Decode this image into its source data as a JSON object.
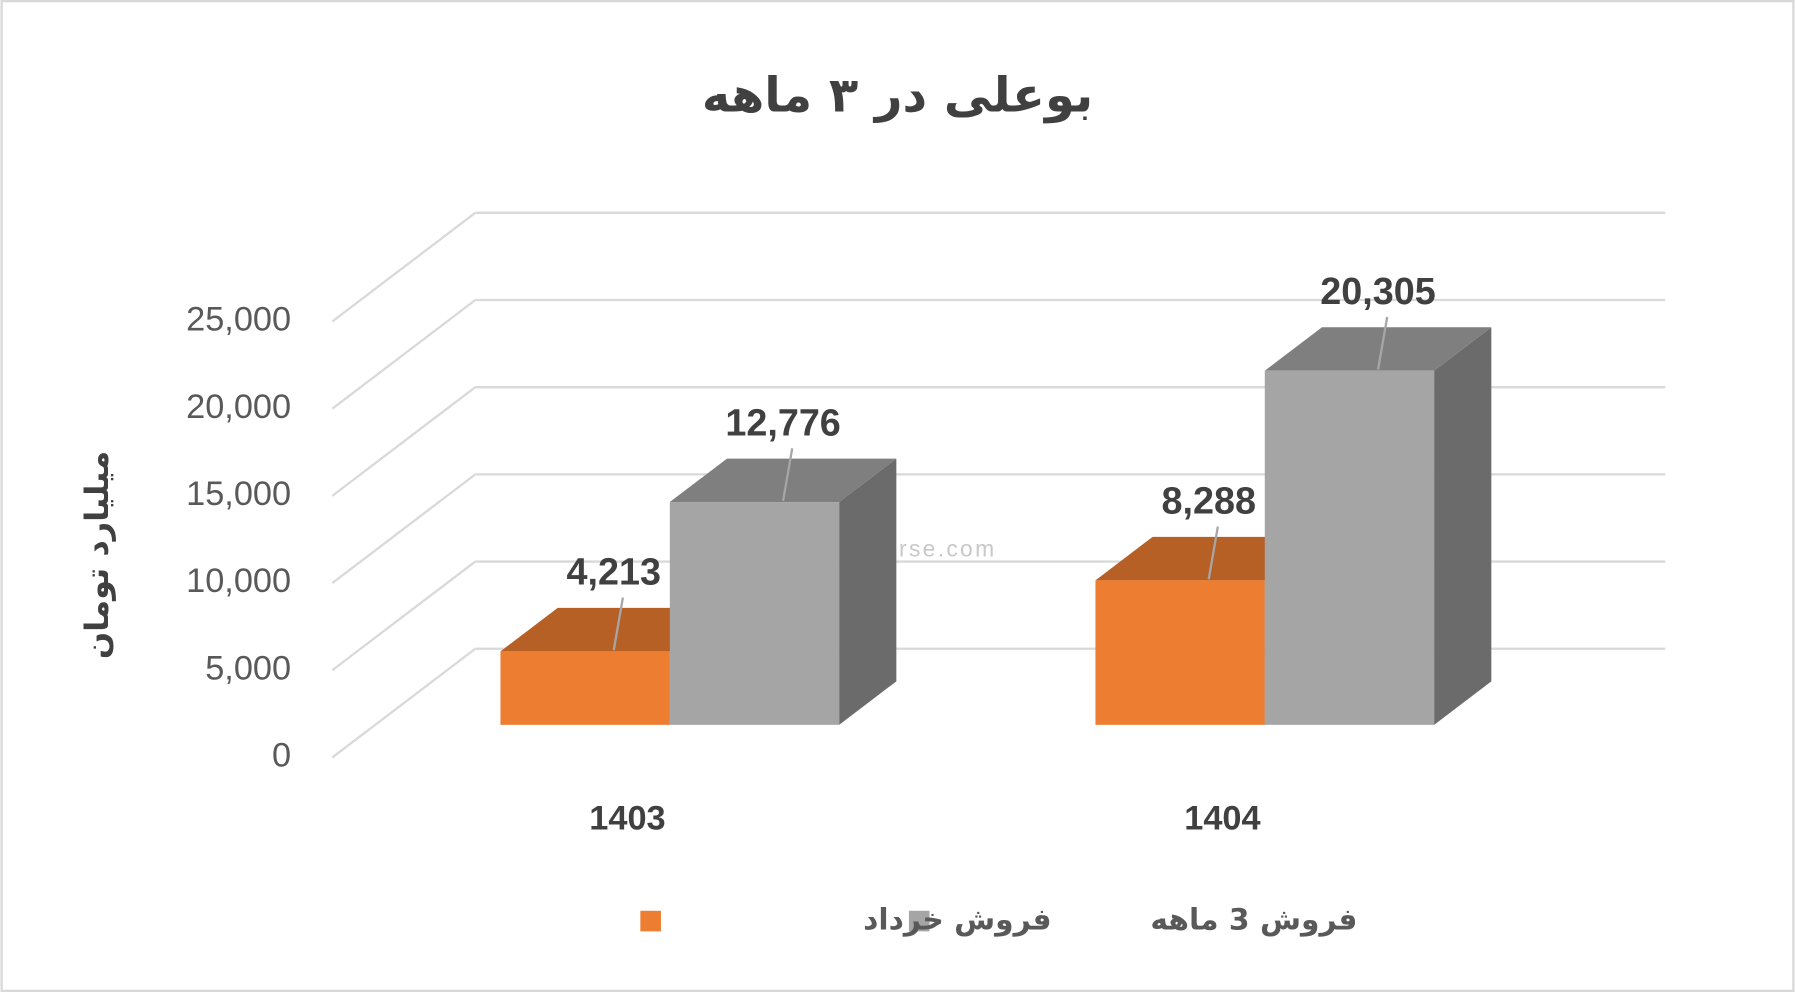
{
  "chart_data": {
    "type": "bar3d",
    "title": "بوعلی در ۳ ماهه",
    "y_label": "میلیارد تومان",
    "watermark": "nabzebourse.com",
    "categories": [
      "1403",
      "1404"
    ],
    "series": [
      {
        "name": "فروش خرداد",
        "color": "#ed7d31",
        "values": [
          4213,
          8288
        ],
        "value_labels": [
          "4,213",
          "8,288"
        ]
      },
      {
        "name": "فروش 3  ماهه",
        "color": "#a5a5a5",
        "values": [
          12776,
          20305
        ],
        "value_labels": [
          "12,776",
          "20,305"
        ]
      }
    ],
    "ylim": [
      0,
      25000
    ],
    "yticks": [
      0,
      {
        "value": 5000,
        "label": "5,000"
      },
      {
        "value": 10000,
        "label": "10,000"
      },
      {
        "value": 15000,
        "label": "15,000"
      },
      {
        "value": 20000,
        "label": "20,000"
      },
      {
        "value": 25000,
        "label": "25,000"
      }
    ],
    "grid": true,
    "legend": "bottom"
  }
}
